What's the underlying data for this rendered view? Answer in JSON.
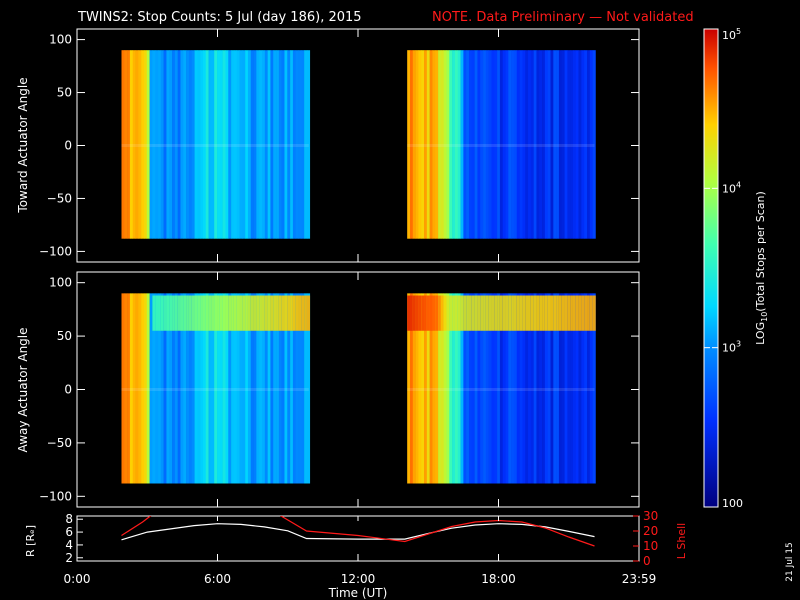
{
  "header": {
    "title": "TWINS2: Stop Counts:  5 Jul (day 186), 2015",
    "note": "NOTE. Data Preliminary — Not validated"
  },
  "side_date": "21 Jul 15",
  "colors": {
    "background": "#000000",
    "axes": "#ffffff",
    "note": "#ff1a1a",
    "r_line": "#ffffff",
    "lshell_line": "#ff1a1a"
  },
  "chart_data": [
    {
      "type": "heatmap",
      "name": "toward",
      "ylabel": "Toward Actuator Angle",
      "ylim": [
        -110,
        110
      ],
      "yticks": [
        "100",
        "50",
        "0",
        "−50",
        "−100"
      ],
      "ytick_values": [
        100,
        50,
        0,
        -50,
        -100
      ],
      "xlim_hours": [
        0,
        24
      ],
      "angle_range": [
        -88,
        90
      ],
      "data_blocks": [
        {
          "start_h": 1.9,
          "end_h": 9.9
        },
        {
          "start_h": 14.1,
          "end_h": 22.1
        }
      ],
      "color_scale": "log10 counts (100 to 1e5)",
      "profile": [
        {
          "h": 1.9,
          "v": 4.5
        },
        {
          "h": 3.0,
          "v": 4.5
        },
        {
          "h": 3.1,
          "v": 3.0
        },
        {
          "h": 5.0,
          "v": 3.0
        },
        {
          "h": 5.2,
          "v": 3.3
        },
        {
          "h": 6.2,
          "v": 3.3
        },
        {
          "h": 6.8,
          "v": 3.1
        },
        {
          "h": 9.9,
          "v": 3.0
        },
        {
          "h": 14.1,
          "v": 4.6
        },
        {
          "h": 15.4,
          "v": 4.4
        },
        {
          "h": 16.3,
          "v": 3.4
        },
        {
          "h": 16.6,
          "v": 2.6
        },
        {
          "h": 22.0,
          "v": 2.5
        }
      ]
    },
    {
      "type": "heatmap",
      "name": "away",
      "ylabel": "Away Actuator Angle",
      "ylim": [
        -110,
        110
      ],
      "yticks": [
        "100",
        "50",
        "0",
        "−50",
        "−100"
      ],
      "ytick_values": [
        100,
        50,
        0,
        -50,
        -100
      ],
      "xlim_hours": [
        0,
        24
      ],
      "angle_range": [
        -88,
        90
      ],
      "data_blocks": [
        {
          "start_h": 1.9,
          "end_h": 9.9
        },
        {
          "start_h": 14.1,
          "end_h": 22.1
        }
      ],
      "color_scale": "log10 counts (100 to 1e5)",
      "feature": {
        "from_h": 3.2,
        "to_h": 9.9,
        "angle_low": 55,
        "angle_high": 88,
        "peak_v": 4.5
      },
      "profile": [
        {
          "h": 1.9,
          "v": 4.5
        },
        {
          "h": 3.0,
          "v": 4.5
        },
        {
          "h": 3.1,
          "v": 3.0
        },
        {
          "h": 5.0,
          "v": 3.0
        },
        {
          "h": 5.2,
          "v": 3.3
        },
        {
          "h": 6.2,
          "v": 3.3
        },
        {
          "h": 6.8,
          "v": 3.1
        },
        {
          "h": 9.9,
          "v": 3.0
        },
        {
          "h": 14.1,
          "v": 4.6
        },
        {
          "h": 15.4,
          "v": 4.4
        },
        {
          "h": 16.3,
          "v": 3.4
        },
        {
          "h": 16.6,
          "v": 2.6
        },
        {
          "h": 22.0,
          "v": 2.5
        }
      ]
    },
    {
      "type": "line",
      "name": "orbit",
      "xlabel": "Time (UT)",
      "xticks": [
        "0:00",
        "6:00",
        "12:00",
        "18:00",
        "23:59"
      ],
      "xtick_hours": [
        0,
        6,
        12,
        18,
        24
      ],
      "ylabel_left": "R [Rₑ]",
      "ylim_left": [
        1.5,
        8.5
      ],
      "yticks_left": [
        "8",
        "6",
        "4",
        "2"
      ],
      "ytick_left_values": [
        8,
        6,
        4,
        2
      ],
      "ylabel_right": "L Shell",
      "ylim_right": [
        0,
        30
      ],
      "yticks_right": [
        "30",
        "20",
        "10",
        "0"
      ],
      "ytick_right_values": [
        30,
        20,
        10,
        0
      ],
      "series": [
        {
          "axis": "left",
          "x": [
            1.9,
            3,
            4,
            5,
            6,
            7,
            8,
            9,
            9.8,
            12,
            14,
            15,
            16,
            17,
            18,
            19,
            20,
            21,
            22.1
          ],
          "y": [
            4.8,
            6.0,
            6.5,
            7.0,
            7.3,
            7.2,
            6.8,
            6.2,
            5.0,
            4.9,
            4.9,
            5.8,
            6.6,
            7.1,
            7.3,
            7.2,
            6.8,
            6.1,
            5.3
          ]
        },
        {
          "axis": "right",
          "x": [
            1.9,
            2.8,
            3.3,
            8.5,
            9.8,
            12,
            14,
            15,
            16,
            17,
            18,
            19,
            20,
            21,
            22.1
          ],
          "y": [
            17,
            26,
            32,
            32,
            20,
            17,
            13,
            18,
            23,
            26,
            27,
            26,
            22,
            16,
            10
          ]
        }
      ]
    },
    {
      "type": "colorbar",
      "label": "LOG10(Total Stops per Scan)",
      "label_prefix": "LOG",
      "label_sub": "10",
      "label_suffix": "(Total Stops per Scan)",
      "range_log": [
        2,
        5
      ],
      "ticks": [
        {
          "v": 5,
          "base": "10",
          "exp": "5"
        },
        {
          "v": 4,
          "base": "10",
          "exp": "4"
        },
        {
          "v": 3,
          "base": "10",
          "exp": "3"
        },
        {
          "v": 2,
          "base": "100",
          "exp": ""
        }
      ]
    }
  ]
}
